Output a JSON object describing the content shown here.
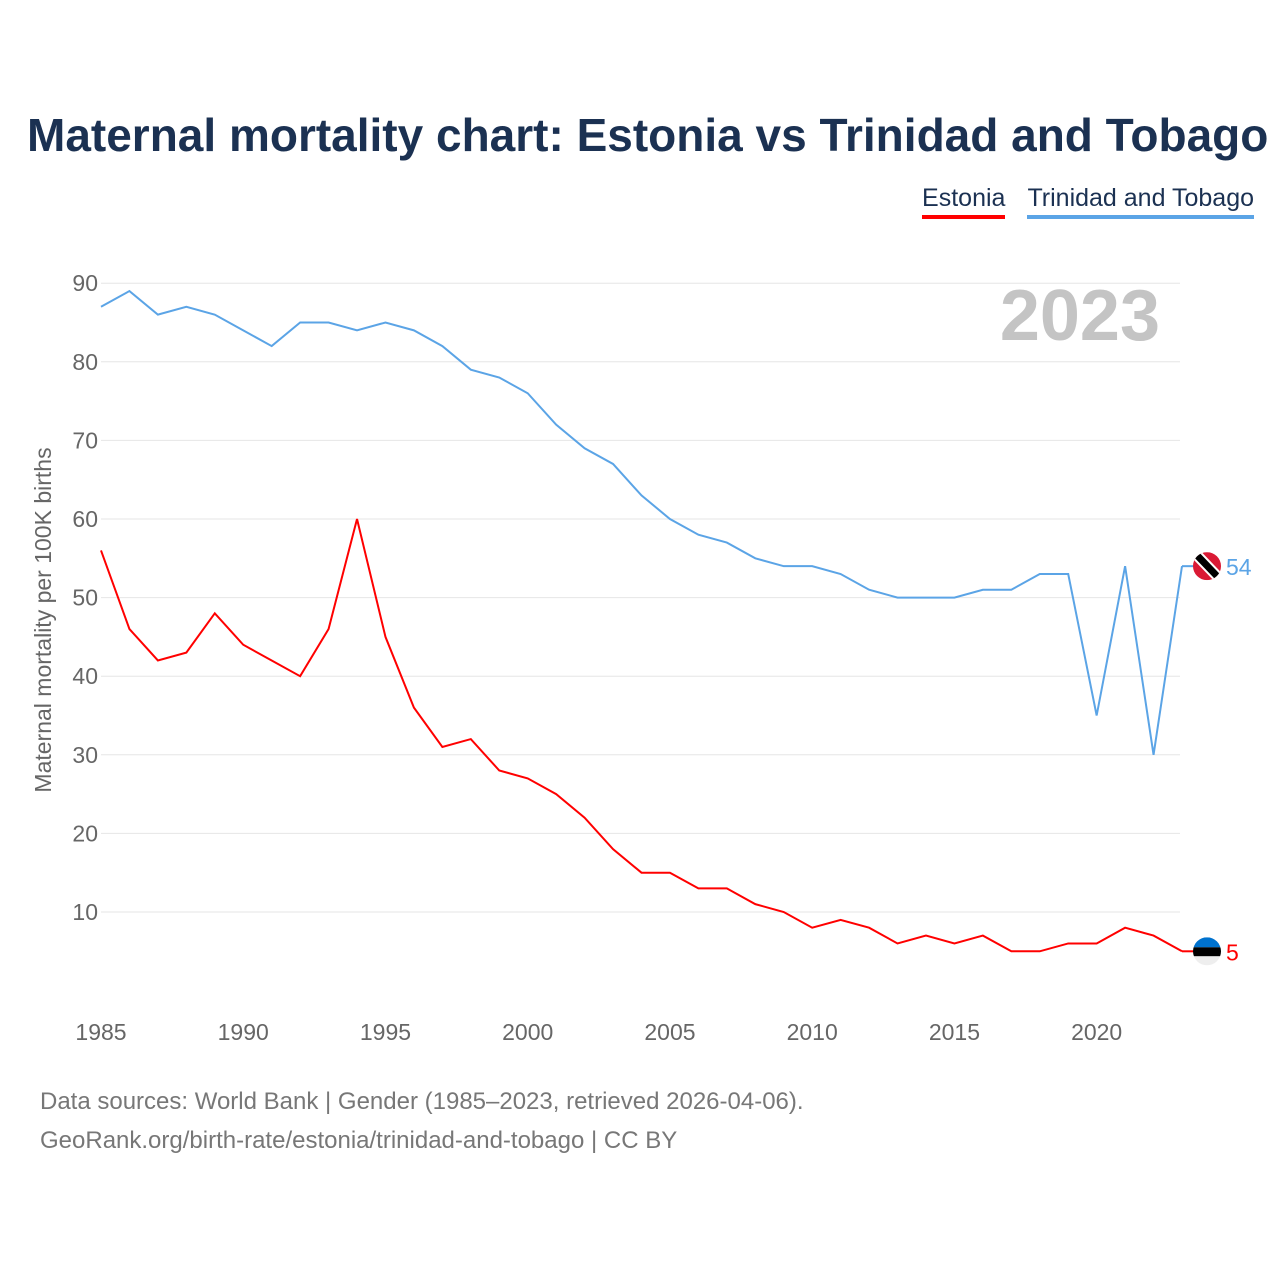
{
  "chart_data": {
    "type": "line",
    "title": "Maternal mortality chart: Estonia vs Trinidad and Tobago",
    "ylabel": "Maternal mortality per 100K births",
    "xlabel": "",
    "year_label": "2023",
    "ylim": [
      0,
      90
    ],
    "xlim": [
      1985,
      2023
    ],
    "yticks": [
      10,
      20,
      30,
      40,
      50,
      60,
      70,
      80,
      90
    ],
    "xticks": [
      1985,
      1990,
      1995,
      2000,
      2005,
      2010,
      2015,
      2020
    ],
    "grid": true,
    "legend_position": "top-right",
    "x": [
      1985,
      1986,
      1987,
      1988,
      1989,
      1990,
      1991,
      1992,
      1993,
      1994,
      1995,
      1996,
      1997,
      1998,
      1999,
      2000,
      2001,
      2002,
      2003,
      2004,
      2005,
      2006,
      2007,
      2008,
      2009,
      2010,
      2011,
      2012,
      2013,
      2014,
      2015,
      2016,
      2017,
      2018,
      2019,
      2020,
      2021,
      2022,
      2023
    ],
    "series": [
      {
        "name": "Estonia",
        "color": "#ff0000",
        "end_label": "5",
        "values": [
          56,
          46,
          42,
          43,
          48,
          44,
          42,
          40,
          46,
          60,
          45,
          36,
          31,
          32,
          28,
          27,
          25,
          22,
          18,
          15,
          15,
          13,
          13,
          11,
          10,
          8,
          9,
          8,
          6,
          7,
          6,
          7,
          5,
          5,
          6,
          6,
          8,
          7,
          5
        ]
      },
      {
        "name": "Trinidad and Tobago",
        "color": "#5ba4e6",
        "end_label": "54",
        "values": [
          87,
          89,
          86,
          87,
          86,
          84,
          82,
          85,
          85,
          84,
          85,
          84,
          82,
          79,
          78,
          76,
          72,
          69,
          67,
          63,
          60,
          58,
          57,
          55,
          54,
          54,
          53,
          51,
          50,
          50,
          50,
          51,
          51,
          53,
          53,
          35,
          54,
          30,
          54
        ]
      }
    ]
  },
  "footer": {
    "line1": "Data sources: World Bank | Gender (1985–2023, retrieved 2026-04-06).",
    "line2": "GeoRank.org/birth-rate/estonia/trinidad-and-tobago | CC BY"
  }
}
